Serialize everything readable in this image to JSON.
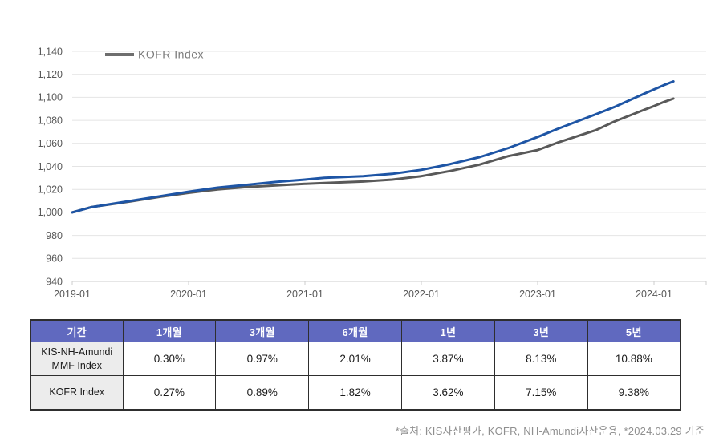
{
  "chart_data": {
    "type": "line",
    "title": "",
    "xlabel": "",
    "ylabel": "",
    "ylim": [
      940,
      1140
    ],
    "grid": true,
    "legend_position": "top-left",
    "legend": {
      "label": "KOFR Index"
    },
    "x_ticks": [
      {
        "m": 0,
        "label": "2019-01"
      },
      {
        "m": 12,
        "label": "2020-01"
      },
      {
        "m": 24,
        "label": "2021-01"
      },
      {
        "m": 36,
        "label": "2022-01"
      },
      {
        "m": 48,
        "label": "2023-01"
      },
      {
        "m": 60,
        "label": "2024-01"
      }
    ],
    "y_ticks": [
      {
        "v": 940,
        "label": "940"
      },
      {
        "v": 960,
        "label": "960"
      },
      {
        "v": 980,
        "label": "980"
      },
      {
        "v": 1000,
        "label": "1,000"
      },
      {
        "v": 1020,
        "label": "1,020"
      },
      {
        "v": 1040,
        "label": "1,040"
      },
      {
        "v": 1060,
        "label": "1,060"
      },
      {
        "v": 1080,
        "label": "1,080"
      },
      {
        "v": 1100,
        "label": "1,100"
      },
      {
        "v": 1120,
        "label": "1,120"
      },
      {
        "v": 1140,
        "label": "1,140"
      }
    ],
    "series": [
      {
        "name": "KIS-NH-Amundi MMF Index",
        "color": "#1e55a5",
        "points": [
          [
            0,
            1000
          ],
          [
            2,
            1004.6
          ],
          [
            6,
            1010
          ],
          [
            9,
            1014
          ],
          [
            12,
            1018
          ],
          [
            15,
            1021.5
          ],
          [
            18,
            1024
          ],
          [
            21,
            1026.5
          ],
          [
            24,
            1028.5
          ],
          [
            26,
            1030.1
          ],
          [
            30,
            1031.5
          ],
          [
            33,
            1033.5
          ],
          [
            36,
            1037
          ],
          [
            39,
            1042
          ],
          [
            42,
            1048
          ],
          [
            45,
            1056
          ],
          [
            48,
            1065.6
          ],
          [
            50,
            1072.4
          ],
          [
            54,
            1085.3
          ],
          [
            56,
            1091.9
          ],
          [
            59,
            1103.2
          ],
          [
            60,
            1106.9
          ],
          [
            61,
            1110.6
          ],
          [
            62,
            1113.9
          ]
        ]
      },
      {
        "name": "KOFR Index",
        "color": "#595959",
        "points": [
          [
            0,
            1000
          ],
          [
            2,
            1004.7
          ],
          [
            6,
            1009.5
          ],
          [
            9,
            1013.5
          ],
          [
            12,
            1017
          ],
          [
            15,
            1020
          ],
          [
            18,
            1022
          ],
          [
            21,
            1023.5
          ],
          [
            24,
            1024.8
          ],
          [
            26,
            1025.6
          ],
          [
            30,
            1026.8
          ],
          [
            33,
            1028.5
          ],
          [
            36,
            1031.5
          ],
          [
            39,
            1036
          ],
          [
            42,
            1041.5
          ],
          [
            45,
            1049
          ],
          [
            48,
            1054.2
          ],
          [
            50,
            1060.5
          ],
          [
            54,
            1071.5
          ],
          [
            56,
            1079.3
          ],
          [
            59,
            1089.2
          ],
          [
            60,
            1092.4
          ],
          [
            61,
            1095.9
          ],
          [
            62,
            1098.9
          ]
        ]
      }
    ]
  },
  "colors": {
    "mmf_line": "#1e55a5",
    "kofr_line": "#595959",
    "grid_line": "#e4e4e4",
    "axis_line": "#cccccc",
    "axis_text": "#595959",
    "legend_text": "#7a7a7a",
    "table_header_bg": "#6069bf",
    "table_header_text": "#ffffff",
    "table_label_bg": "#ececec",
    "table_border": "#2e2e2e",
    "footnote_text": "#8f8f8f"
  },
  "table": {
    "headers": [
      "기간",
      "1개월",
      "3개월",
      "6개월",
      "1년",
      "3년",
      "5년"
    ],
    "rows": [
      {
        "label": "KIS-NH-Amundi MMF Index",
        "values": [
          "0.30%",
          "0.97%",
          "2.01%",
          "3.87%",
          "8.13%",
          "10.88%"
        ]
      },
      {
        "label": "KOFR Index",
        "values": [
          "0.27%",
          "0.89%",
          "1.82%",
          "3.62%",
          "7.15%",
          "9.38%"
        ]
      }
    ]
  },
  "footnote": "*출처: KIS자산평가, KOFR, NH-Amundi자산운용, *2024.03.29 기준"
}
